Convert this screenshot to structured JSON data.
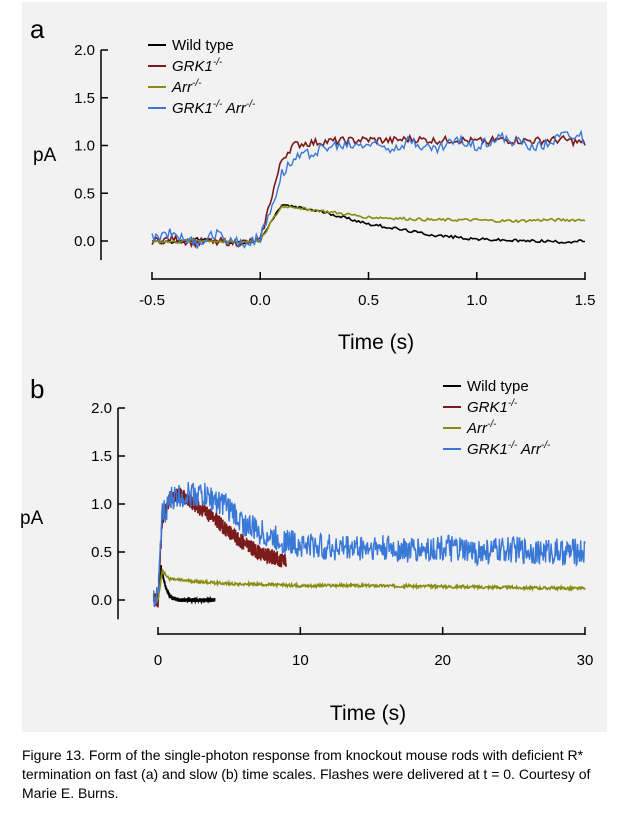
{
  "caption": "Figure 13. Form of the single-photon response from knockout mouse rods with deficient R* termination on fast (a) and slow (b) time scales. Flashes were delivered at t = 0. Courtesy of Marie E. Burns.",
  "colors": {
    "Wild type": "#000000",
    "GRK1": "#7a1a1a",
    "Arr": "#8a8c12",
    "GRK1 Arr": "#3a78d8",
    "background": "#f2f2f2"
  },
  "chart_data": [
    {
      "type": "line",
      "panel": "a",
      "xlabel": "Time (s)",
      "ylabel": "pA",
      "xlim": [
        -0.5,
        1.5
      ],
      "ylim": [
        -0.2,
        2.0
      ],
      "xticks": [
        "-0.5",
        "0.0",
        "0.5",
        "1.0",
        "1.5"
      ],
      "yticks": [
        "0.0",
        "0.5",
        "1.0",
        "1.5",
        "2.0"
      ],
      "grid": false,
      "legend_position": "top-left",
      "series": [
        {
          "name_main": "Wild type",
          "name_sup": "",
          "name_main2": "",
          "name_sup2": "",
          "italic": false,
          "x": [
            -0.5,
            -0.4,
            -0.3,
            -0.2,
            -0.1,
            0.0,
            0.05,
            0.1,
            0.15,
            0.2,
            0.3,
            0.4,
            0.5,
            0.6,
            0.7,
            0.8,
            0.9,
            1.0,
            1.1,
            1.2,
            1.3,
            1.4,
            1.5
          ],
          "y": [
            0.0,
            -0.02,
            0.02,
            0.0,
            -0.02,
            0.0,
            0.2,
            0.38,
            0.36,
            0.34,
            0.3,
            0.24,
            0.18,
            0.14,
            0.1,
            0.06,
            0.04,
            0.02,
            0.01,
            0.0,
            0.0,
            -0.01,
            0.0
          ]
        },
        {
          "name_main": "GRK1",
          "name_sup": "-/-",
          "name_main2": "",
          "name_sup2": "",
          "italic": true,
          "x": [
            -0.5,
            -0.4,
            -0.3,
            -0.2,
            -0.1,
            0.0,
            0.05,
            0.1,
            0.15,
            0.2,
            0.3,
            0.4,
            0.5,
            0.6,
            0.7,
            0.8,
            0.9,
            1.0,
            1.1,
            1.2,
            1.3,
            1.4,
            1.5
          ],
          "y": [
            0.0,
            0.02,
            -0.02,
            0.0,
            -0.02,
            0.0,
            0.45,
            0.85,
            1.0,
            1.02,
            1.04,
            1.05,
            1.06,
            1.05,
            1.07,
            1.05,
            1.06,
            1.04,
            1.06,
            1.05,
            1.05,
            1.06,
            1.02
          ]
        },
        {
          "name_main": "Arr",
          "name_sup": "-/-",
          "name_main2": "",
          "name_sup2": "",
          "italic": true,
          "x": [
            -0.5,
            -0.4,
            -0.3,
            -0.2,
            -0.1,
            0.0,
            0.05,
            0.1,
            0.15,
            0.2,
            0.3,
            0.4,
            0.5,
            0.6,
            0.7,
            0.8,
            0.9,
            1.0,
            1.1,
            1.2,
            1.3,
            1.4,
            1.5
          ],
          "y": [
            0.0,
            -0.01,
            0.01,
            0.0,
            -0.01,
            0.0,
            0.2,
            0.36,
            0.36,
            0.34,
            0.31,
            0.28,
            0.25,
            0.24,
            0.23,
            0.22,
            0.22,
            0.22,
            0.21,
            0.21,
            0.22,
            0.22,
            0.22
          ]
        },
        {
          "name_main": "GRK1",
          "name_sup": "-/-",
          "name_main2": "Arr",
          "name_sup2": "-/-",
          "italic": true,
          "x": [
            -0.5,
            -0.4,
            -0.3,
            -0.2,
            -0.1,
            0.0,
            0.05,
            0.1,
            0.15,
            0.2,
            0.3,
            0.4,
            0.5,
            0.6,
            0.7,
            0.8,
            0.9,
            1.0,
            1.1,
            1.2,
            1.3,
            1.4,
            1.5
          ],
          "y": [
            0.02,
            0.1,
            -0.04,
            0.08,
            -0.02,
            0.02,
            0.35,
            0.72,
            0.85,
            0.9,
            0.98,
            1.0,
            1.02,
            0.98,
            1.05,
            0.95,
            1.05,
            1.0,
            1.08,
            1.02,
            1.0,
            1.12,
            1.08
          ]
        }
      ]
    },
    {
      "type": "line",
      "panel": "b",
      "xlabel": "Time (s)",
      "ylabel": "pA",
      "xlim": [
        0,
        30
      ],
      "ylim": [
        -0.2,
        2.0
      ],
      "xticks": [
        "0",
        "10",
        "20",
        "30"
      ],
      "yticks": [
        "0.0",
        "0.5",
        "1.0",
        "1.5",
        "2.0"
      ],
      "grid": false,
      "legend_position": "top-right",
      "series": [
        {
          "name_main": "Wild type",
          "name_sup": "",
          "name_main2": "",
          "name_sup2": "",
          "italic": false,
          "x": [
            -0.3,
            0.0,
            0.2,
            0.5,
            0.8,
            1.0,
            1.5,
            2.0,
            3.0,
            4.0
          ],
          "y": [
            0.0,
            0.0,
            0.35,
            0.15,
            0.05,
            0.02,
            0.0,
            0.0,
            0.0,
            0.0
          ]
        },
        {
          "name_main": "GRK1",
          "name_sup": "-/-",
          "name_main2": "",
          "name_sup2": "",
          "italic": true,
          "x": [
            -0.3,
            0.0,
            0.3,
            0.8,
            1.5,
            2.0,
            3.0,
            4.0,
            5.0,
            6.0,
            7.0,
            8.0,
            9.0
          ],
          "y": [
            0.0,
            0.0,
            0.85,
            1.05,
            1.1,
            1.05,
            0.95,
            0.85,
            0.7,
            0.6,
            0.5,
            0.45,
            0.4
          ]
        },
        {
          "name_main": "Arr",
          "name_sup": "-/-",
          "name_main2": "",
          "name_sup2": "",
          "italic": true,
          "x": [
            -0.3,
            0.0,
            0.3,
            0.8,
            2.0,
            5.0,
            10.0,
            15.0,
            20.0,
            25.0,
            30.0
          ],
          "y": [
            0.0,
            0.0,
            0.3,
            0.22,
            0.2,
            0.17,
            0.15,
            0.15,
            0.14,
            0.13,
            0.12
          ]
        },
        {
          "name_main": "GRK1",
          "name_sup": "-/-",
          "name_main2": "Arr",
          "name_sup2": "-/-",
          "italic": true,
          "x": [
            -0.3,
            0.0,
            0.3,
            1.0,
            2.0,
            3.0,
            4.0,
            5.0,
            6.0,
            8.0,
            10.0,
            12.0,
            15.0,
            18.0,
            20.0,
            22.0,
            25.0,
            28.0,
            30.0
          ],
          "y": [
            0.0,
            0.0,
            0.9,
            1.05,
            1.1,
            1.1,
            1.05,
            0.95,
            0.8,
            0.65,
            0.58,
            0.55,
            0.55,
            0.52,
            0.55,
            0.5,
            0.52,
            0.5,
            0.5
          ]
        }
      ]
    }
  ]
}
